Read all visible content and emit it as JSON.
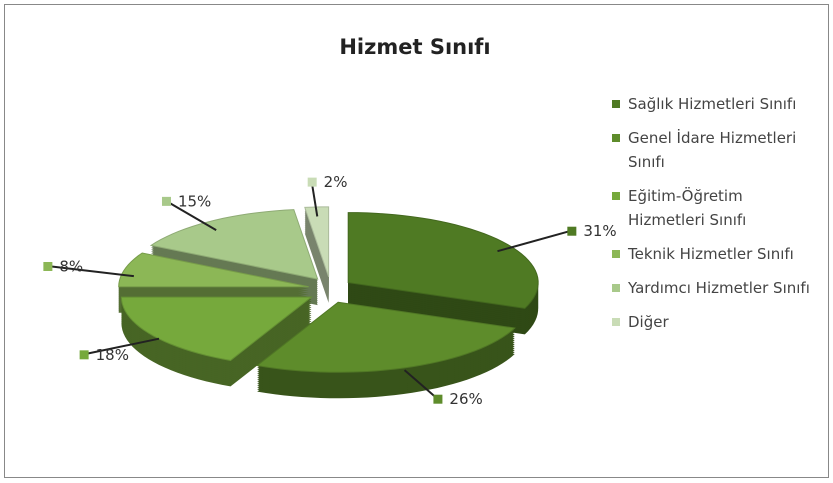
{
  "chart_data": {
    "type": "pie",
    "title": "Hizmet Sınıfı",
    "categories": [
      "Sağlık Hizmetleri Sınıfı",
      "Genel İdare Hizmetleri Sınıfı",
      "Eğitim-Öğretim Hizmetleri Sınıfı",
      "Teknik Hizmetler Sınıfı",
      "Yardımcı Hizmetler Sınıfı",
      "Diğer"
    ],
    "values": [
      31,
      26,
      18,
      8,
      15,
      2
    ],
    "value_labels": [
      "31%",
      "26%",
      "18%",
      "8%",
      "15%",
      "2%"
    ],
    "colors": [
      "#4f7a23",
      "#5e8c2b",
      "#76a93c",
      "#8cb756",
      "#a8c98a",
      "#c9dcb6"
    ],
    "legend": "right"
  }
}
